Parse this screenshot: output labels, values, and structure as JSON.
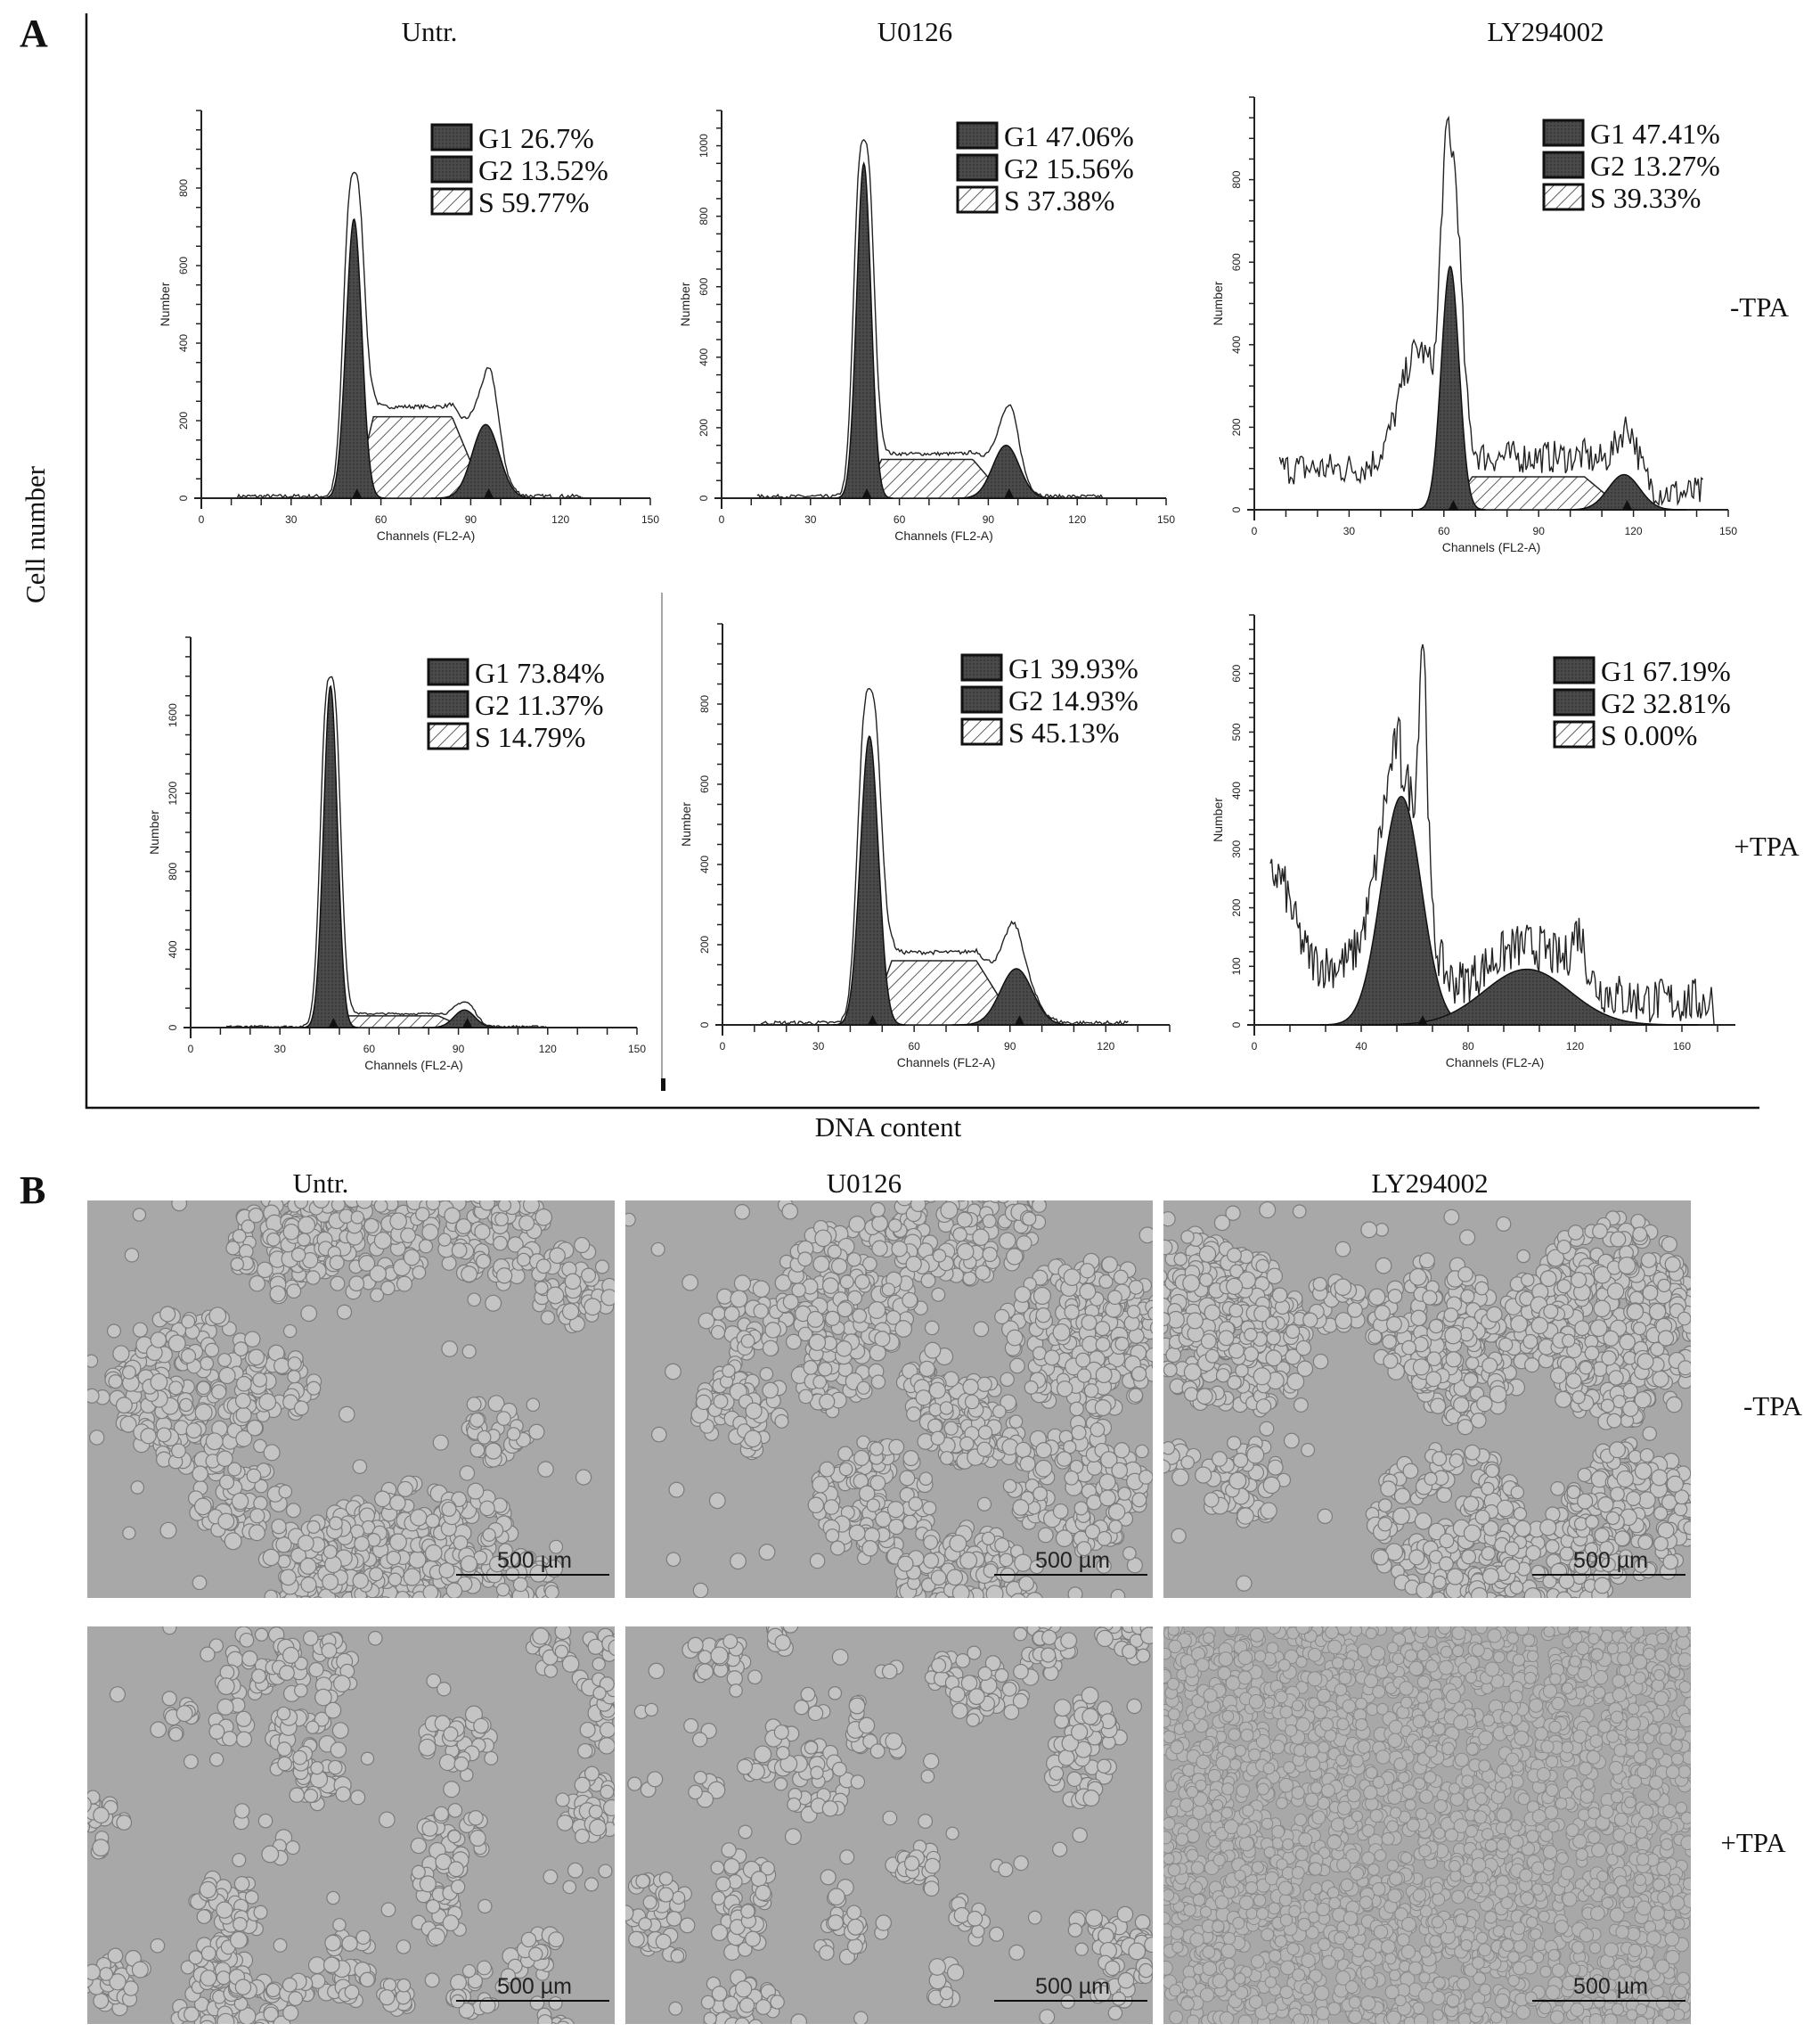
{
  "panel_a": {
    "label": "A",
    "y_title": "Cell number",
    "x_title": "DNA content",
    "columns": [
      "Untr.",
      "U0126",
      "LY294002"
    ],
    "rows": [
      "-TPA",
      "+TPA"
    ]
  },
  "panel_b": {
    "label": "B",
    "columns": [
      "Untr.",
      "U0126",
      "LY294002"
    ],
    "rows": [
      "-TPA",
      "+TPA"
    ],
    "scale_bar": "500 µm"
  },
  "chart_data": [
    {
      "type": "area",
      "treatment": "Untr.",
      "condition": "-TPA",
      "xlabel": "Channels (FL2-A)",
      "ylabel": "Number",
      "xlim": [
        0,
        150
      ],
      "ylim": [
        0,
        1000
      ],
      "xticks": [
        0,
        30,
        60,
        90,
        120,
        150
      ],
      "yticks": [
        0,
        200,
        400,
        600,
        800
      ],
      "legend": [
        {
          "phase": "G1",
          "value": "26.7%"
        },
        {
          "phase": "G2",
          "value": "13.52%"
        },
        {
          "phase": "S",
          "value": "59.77%"
        }
      ],
      "g1": {
        "channel": 51,
        "count": 720,
        "sigma": 2.6
      },
      "g2": {
        "channel": 95,
        "count": 190,
        "sigma": 4.5
      },
      "s_level": 210,
      "observed_peaks": [
        {
          "channel": 51,
          "count": 850
        },
        {
          "channel": 96,
          "count": 345
        }
      ]
    },
    {
      "type": "area",
      "treatment": "U0126",
      "condition": "-TPA",
      "xlabel": "Channels (FL2-A)",
      "ylabel": "Number",
      "xlim": [
        0,
        150
      ],
      "ylim": [
        0,
        1100
      ],
      "xticks": [
        0,
        30,
        60,
        90,
        120,
        150
      ],
      "yticks": [
        0,
        200,
        400,
        600,
        800,
        1000
      ],
      "legend": [
        {
          "phase": "G1",
          "value": "47.06%"
        },
        {
          "phase": "G2",
          "value": "15.56%"
        },
        {
          "phase": "S",
          "value": "37.38%"
        }
      ],
      "g1": {
        "channel": 48,
        "count": 950,
        "sigma": 2.4
      },
      "g2": {
        "channel": 96,
        "count": 150,
        "sigma": 4.5
      },
      "s_level": 110,
      "observed_peaks": [
        {
          "channel": 48,
          "count": 1020
        },
        {
          "channel": 97,
          "count": 270
        }
      ]
    },
    {
      "type": "area",
      "treatment": "LY294002",
      "condition": "-TPA",
      "xlabel": "Channels (FL2-A)",
      "ylabel": "Number",
      "xlim": [
        0,
        150
      ],
      "ylim": [
        0,
        1000
      ],
      "xticks": [
        0,
        30,
        60,
        90,
        120,
        150
      ],
      "yticks": [
        0,
        200,
        400,
        600,
        800
      ],
      "legend": [
        {
          "phase": "G1",
          "value": "47.41%"
        },
        {
          "phase": "G2",
          "value": "13.27%"
        },
        {
          "phase": "S",
          "value": "39.33%"
        }
      ],
      "g1": {
        "channel": 62,
        "count": 590,
        "sigma": 2.8
      },
      "g2": {
        "channel": 117,
        "count": 85,
        "sigma": 5
      },
      "s_level": 80,
      "observed_peaks": [
        {
          "channel": 62,
          "count": 870
        },
        {
          "channel": 52,
          "count": 320
        },
        {
          "channel": 118,
          "count": 170
        }
      ]
    },
    {
      "type": "area",
      "treatment": "Untr.",
      "condition": "+TPA",
      "xlabel": "Channels (FL2-A)",
      "ylabel": "Number",
      "xlim": [
        0,
        150
      ],
      "ylim": [
        0,
        2000
      ],
      "xticks": [
        0,
        30,
        60,
        90,
        120,
        150
      ],
      "yticks": [
        0,
        400,
        800,
        1200,
        1600
      ],
      "legend": [
        {
          "phase": "G1",
          "value": "73.84%"
        },
        {
          "phase": "G2",
          "value": "11.37%"
        },
        {
          "phase": "S",
          "value": "14.79%"
        }
      ],
      "g1": {
        "channel": 47,
        "count": 1750,
        "sigma": 2.3
      },
      "g2": {
        "channel": 92,
        "count": 90,
        "sigma": 3.5
      },
      "s_level": 60,
      "observed_peaks": [
        {
          "channel": 47,
          "count": 1800
        },
        {
          "channel": 92,
          "count": 130
        }
      ]
    },
    {
      "type": "area",
      "treatment": "U0126",
      "condition": "+TPA",
      "xlabel": "Channels (FL2-A)",
      "ylabel": "Number",
      "xlim": [
        0,
        140
      ],
      "ylim": [
        0,
        1000
      ],
      "xticks": [
        0,
        30,
        60,
        90,
        120
      ],
      "yticks": [
        0,
        200,
        400,
        600,
        800
      ],
      "legend": [
        {
          "phase": "G1",
          "value": "39.93%"
        },
        {
          "phase": "G2",
          "value": "14.93%"
        },
        {
          "phase": "S",
          "value": "45.13%"
        }
      ],
      "g1": {
        "channel": 46,
        "count": 720,
        "sigma": 2.8
      },
      "g2": {
        "channel": 92,
        "count": 140,
        "sigma": 5
      },
      "s_level": 160,
      "observed_peaks": [
        {
          "channel": 46,
          "count": 850
        },
        {
          "channel": 91,
          "count": 260
        }
      ]
    },
    {
      "type": "area",
      "treatment": "LY294002",
      "condition": "+TPA",
      "xlabel": "Channels (FL2-A)",
      "ylabel": "Number",
      "xlim": [
        0,
        180
      ],
      "ylim": [
        0,
        700
      ],
      "xticks": [
        0,
        40,
        80,
        120,
        160
      ],
      "yticks": [
        0,
        100,
        200,
        300,
        400,
        500,
        600
      ],
      "legend": [
        {
          "phase": "G1",
          "value": "67.19%"
        },
        {
          "phase": "G2",
          "value": "32.81%"
        },
        {
          "phase": "S",
          "value": "0.00%"
        }
      ],
      "g1": {
        "channel": 55,
        "count": 390,
        "sigma": 7.5
      },
      "g2": {
        "channel": 102,
        "count": 95,
        "sigma": 16
      },
      "s_level": 0,
      "observed_peaks": [
        {
          "channel": 63,
          "count": 670
        },
        {
          "channel": 8,
          "count": 175
        },
        {
          "channel": 121,
          "count": 130
        }
      ]
    }
  ],
  "colors": {
    "phase_fill": "#3c3c3c",
    "micrograph_bg": "#a8a8a8",
    "cell": "#c4c4c4"
  }
}
